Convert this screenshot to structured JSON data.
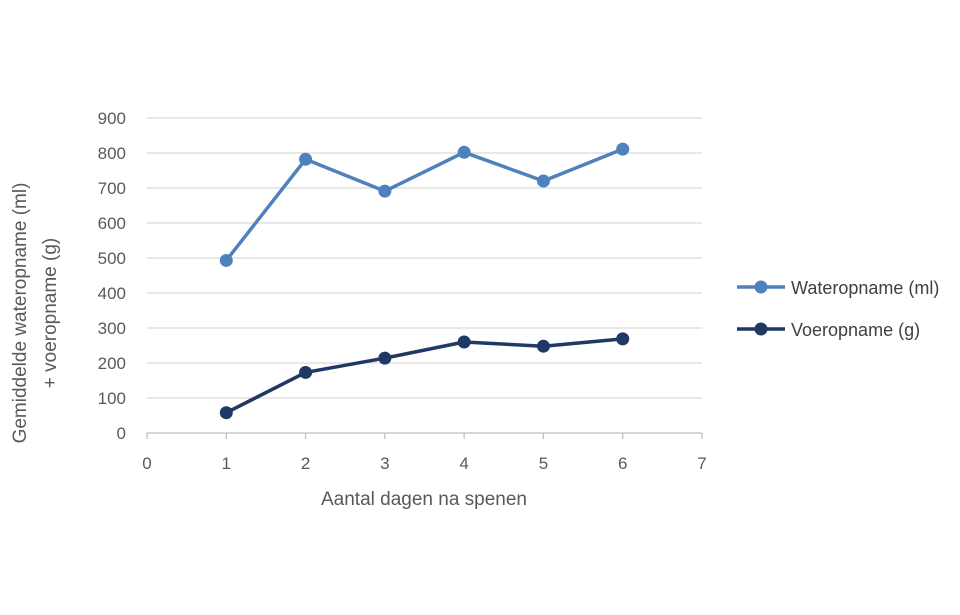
{
  "chart_data": {
    "type": "line",
    "title": "",
    "xlabel": "Aantal dagen na spenen",
    "ylabel_lines": [
      "Gemiddelde wateropname (ml)",
      "+ voeropname (g)"
    ],
    "xlim": [
      0,
      7
    ],
    "ylim": [
      0,
      900
    ],
    "x_ticks": [
      0,
      1,
      2,
      3,
      4,
      5,
      6,
      7
    ],
    "y_ticks": [
      0,
      100,
      200,
      300,
      400,
      500,
      600,
      700,
      800,
      900
    ],
    "grid": "horizontal",
    "legend_position": "right",
    "series": [
      {
        "name": "Wateropname (ml)",
        "color": "#4F81BD",
        "x": [
          1,
          2,
          3,
          4,
          5,
          6
        ],
        "y": [
          493,
          782,
          691,
          802,
          720,
          811
        ]
      },
      {
        "name": "Voeropname (g)",
        "color": "#1F3864",
        "x": [
          1,
          2,
          3,
          4,
          5,
          6
        ],
        "y": [
          58,
          173,
          214,
          260,
          248,
          269
        ]
      }
    ]
  }
}
